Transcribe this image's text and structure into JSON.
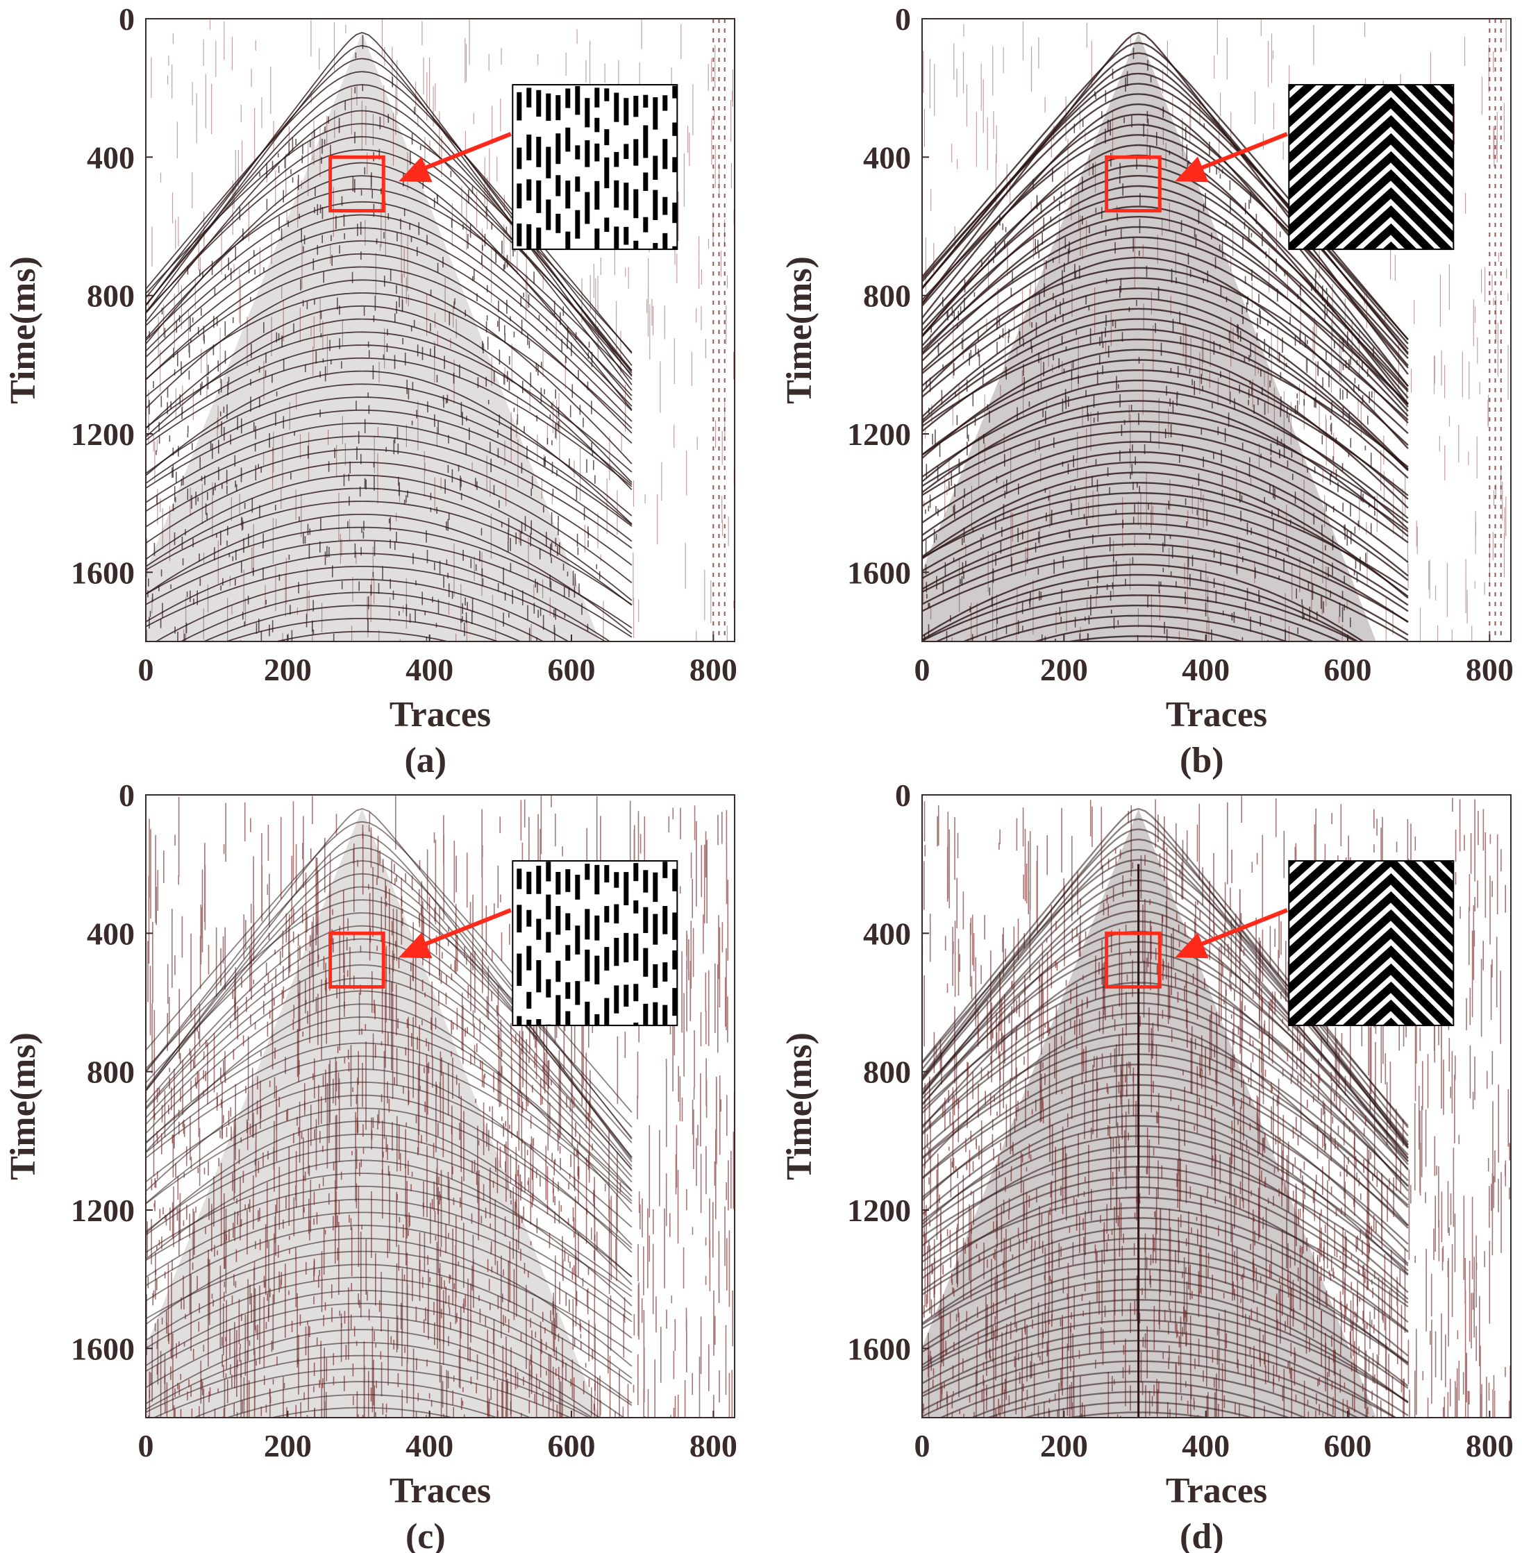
{
  "colors": {
    "wiggle": "#2a1414",
    "noise": "#7a2e2e",
    "highlight": "#ff2a1a",
    "text": "#3a2b2b",
    "frame": "#3a2b2b"
  },
  "panels": [
    {
      "caption": "(a)",
      "xlabel": "Traces",
      "ylabel": "Time(ms)",
      "inset_pattern": "dashes",
      "density": "medium"
    },
    {
      "caption": "(b)",
      "xlabel": "Traces",
      "ylabel": "Time(ms)",
      "inset_pattern": "chevrons",
      "density": "high"
    },
    {
      "caption": "(c)",
      "xlabel": "Traces",
      "ylabel": "Time(ms)",
      "inset_pattern": "dashes",
      "density": "medium"
    },
    {
      "caption": "(d)",
      "xlabel": "Traces",
      "ylabel": "Time(ms)",
      "inset_pattern": "chevrons",
      "density": "high"
    }
  ],
  "chart_data": [
    {
      "type": "heatmap",
      "title": "",
      "xlabel": "Traces",
      "ylabel": "Time(ms)",
      "caption": "(a)",
      "xlim": [
        0,
        830
      ],
      "ylim": [
        1800,
        0
      ],
      "xticks": [
        0,
        200,
        400,
        600,
        800
      ],
      "yticks": [
        0,
        400,
        800,
        1200,
        1600
      ],
      "apex": {
        "trace": 305,
        "time_ms": 40
      },
      "zoom_box": {
        "trace": [
          260,
          335
        ],
        "time_ms": [
          400,
          555
        ]
      }
    },
    {
      "type": "heatmap",
      "title": "",
      "xlabel": "Traces",
      "ylabel": "Time(ms)",
      "caption": "(b)",
      "xlim": [
        0,
        830
      ],
      "ylim": [
        1800,
        0
      ],
      "xticks": [
        0,
        200,
        400,
        600,
        800
      ],
      "yticks": [
        0,
        400,
        800,
        1200,
        1600
      ],
      "apex": {
        "trace": 305,
        "time_ms": 40
      },
      "zoom_box": {
        "trace": [
          260,
          335
        ],
        "time_ms": [
          400,
          555
        ]
      }
    },
    {
      "type": "heatmap",
      "title": "",
      "xlabel": "Traces",
      "ylabel": "Time(ms)",
      "caption": "(c)",
      "xlim": [
        0,
        830
      ],
      "ylim": [
        1800,
        0
      ],
      "xticks": [
        0,
        200,
        400,
        600,
        800
      ],
      "yticks": [
        0,
        400,
        800,
        1200,
        1600
      ],
      "apex": {
        "trace": 305,
        "time_ms": 40
      },
      "zoom_box": {
        "trace": [
          260,
          335
        ],
        "time_ms": [
          400,
          555
        ]
      }
    },
    {
      "type": "heatmap",
      "title": "",
      "xlabel": "Traces",
      "ylabel": "Time(ms)",
      "caption": "(d)",
      "xlim": [
        0,
        830
      ],
      "ylim": [
        1800,
        0
      ],
      "xticks": [
        0,
        200,
        400,
        600,
        800
      ],
      "yticks": [
        0,
        400,
        800,
        1200,
        1600
      ],
      "apex": {
        "trace": 305,
        "time_ms": 40
      },
      "zoom_box": {
        "trace": [
          260,
          335
        ],
        "time_ms": [
          400,
          555
        ]
      }
    }
  ]
}
